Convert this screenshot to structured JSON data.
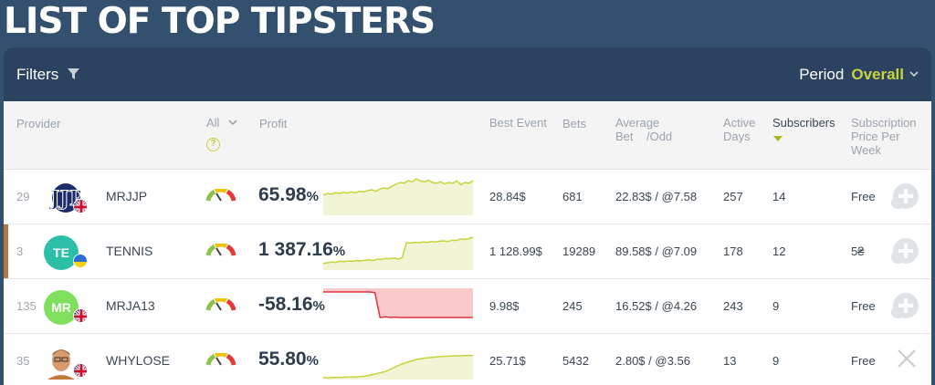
{
  "title": "LIST OF TOP TIPSTERS",
  "filterbar": {
    "filters_label": "Filters",
    "period_label": "Period",
    "period_value": "Overall"
  },
  "columns": {
    "provider": "Provider",
    "all": "All",
    "profit": "Profit",
    "best_event": "Best Event",
    "bets": "Bets",
    "avg_line1": "Average",
    "avg_line2": "Bet",
    "avg_line3": "/Odd",
    "active1": "Active",
    "active2": "Days",
    "subscribers": "Subscribers",
    "price1": "Subscription",
    "price2": "Price Per",
    "price3": "Week"
  },
  "rows": [
    {
      "rank": "29",
      "name": "MRJJP",
      "initials": "",
      "avatar_color": "#ffffff",
      "flag": "uk",
      "profit": "65.98",
      "pct": "%",
      "best_event": "28.84$",
      "bets": "681",
      "avg_bet": "22.83$",
      "sep": "/",
      "odd": "@7.58",
      "active_days": "257",
      "subscribers": "14",
      "price": "Free",
      "action_icon": "add-subscribe-icon",
      "highlight": false,
      "spark_trend": "positive",
      "spark": [
        0.55,
        0.6,
        0.58,
        0.62,
        0.6,
        0.63,
        0.61,
        0.64,
        0.62,
        0.66,
        0.64,
        0.68,
        0.7,
        0.66,
        0.72,
        0.75,
        0.73,
        0.8,
        0.85,
        0.9,
        0.88,
        0.95,
        0.92,
        1.0,
        0.94,
        0.92,
        0.96,
        0.9,
        0.88,
        0.92,
        0.86,
        0.9,
        0.88,
        0.94,
        0.84,
        0.9,
        0.88,
        0.95
      ]
    },
    {
      "rank": "3",
      "name": "TENNIS",
      "initials": "TE",
      "avatar_color": "#2bbfa8",
      "flag": "ua",
      "profit": "1 387.16",
      "pct": "%",
      "best_event": "1 128.99$",
      "bets": "19289",
      "avg_bet": "89.58$",
      "sep": "/",
      "odd": "@7.09",
      "active_days": "178",
      "subscribers": "12",
      "price": "5₴",
      "action_icon": "add-subscribe-icon",
      "highlight": true,
      "spark_trend": "positive",
      "spark": [
        0.18,
        0.2,
        0.22,
        0.21,
        0.24,
        0.23,
        0.25,
        0.24,
        0.26,
        0.25,
        0.27,
        0.28,
        0.26,
        0.3,
        0.29,
        0.32,
        0.31,
        0.33,
        0.3,
        0.34,
        0.75,
        0.74,
        0.76,
        0.75,
        0.77,
        0.76,
        0.78,
        0.77,
        0.79,
        0.8,
        0.78,
        0.82,
        0.81,
        0.85,
        0.84,
        0.86,
        0.9
      ]
    },
    {
      "rank": "135",
      "name": "MRJA13",
      "initials": "MR",
      "avatar_color": "#7ee05c",
      "flag": "uk",
      "profit": "-58.16",
      "pct": "%",
      "best_event": "9.98$",
      "bets": "245",
      "avg_bet": "16.52$",
      "sep": "/",
      "odd": "@4.26",
      "active_days": "243",
      "subscribers": "9",
      "price": "Free",
      "action_icon": "add-subscribe-icon",
      "highlight": false,
      "spark_trend": "negative",
      "spark": [
        0.9,
        0.9,
        0.9,
        0.9,
        0.9,
        0.9,
        0.9,
        0.9,
        0.9,
        0.9,
        0.88,
        0.2,
        0.22,
        0.2,
        0.21,
        0.2,
        0.2,
        0.2,
        0.2,
        0.2,
        0.2,
        0.2,
        0.2,
        0.2,
        0.2,
        0.2,
        0.2,
        0.2,
        0.2,
        0.2
      ]
    },
    {
      "rank": "35",
      "name": "WHYLOSE",
      "initials": "",
      "avatar_color": "#d8a070",
      "flag": "uk",
      "profit": "55.80",
      "pct": "%",
      "best_event": "25.71$",
      "bets": "5432",
      "avg_bet": "2.80$",
      "sep": "/",
      "odd": "@3.56",
      "active_days": "13",
      "subscribers": "9",
      "price": "Free",
      "action_icon": "close-icon",
      "highlight": false,
      "spark_trend": "positive",
      "spark": [
        0.05,
        0.05,
        0.06,
        0.06,
        0.07,
        0.07,
        0.08,
        0.1,
        0.14,
        0.18,
        0.22,
        0.3,
        0.38,
        0.45,
        0.5,
        0.55,
        0.58,
        0.6,
        0.62,
        0.63,
        0.64,
        0.65,
        0.65,
        0.66,
        0.66
      ]
    }
  ],
  "colors": {
    "accent": "#c8d43c",
    "header_bg": "#34506f",
    "bar_bg": "#2b4260",
    "negative": "#e0343a",
    "positive_line": "#c6d43a"
  }
}
